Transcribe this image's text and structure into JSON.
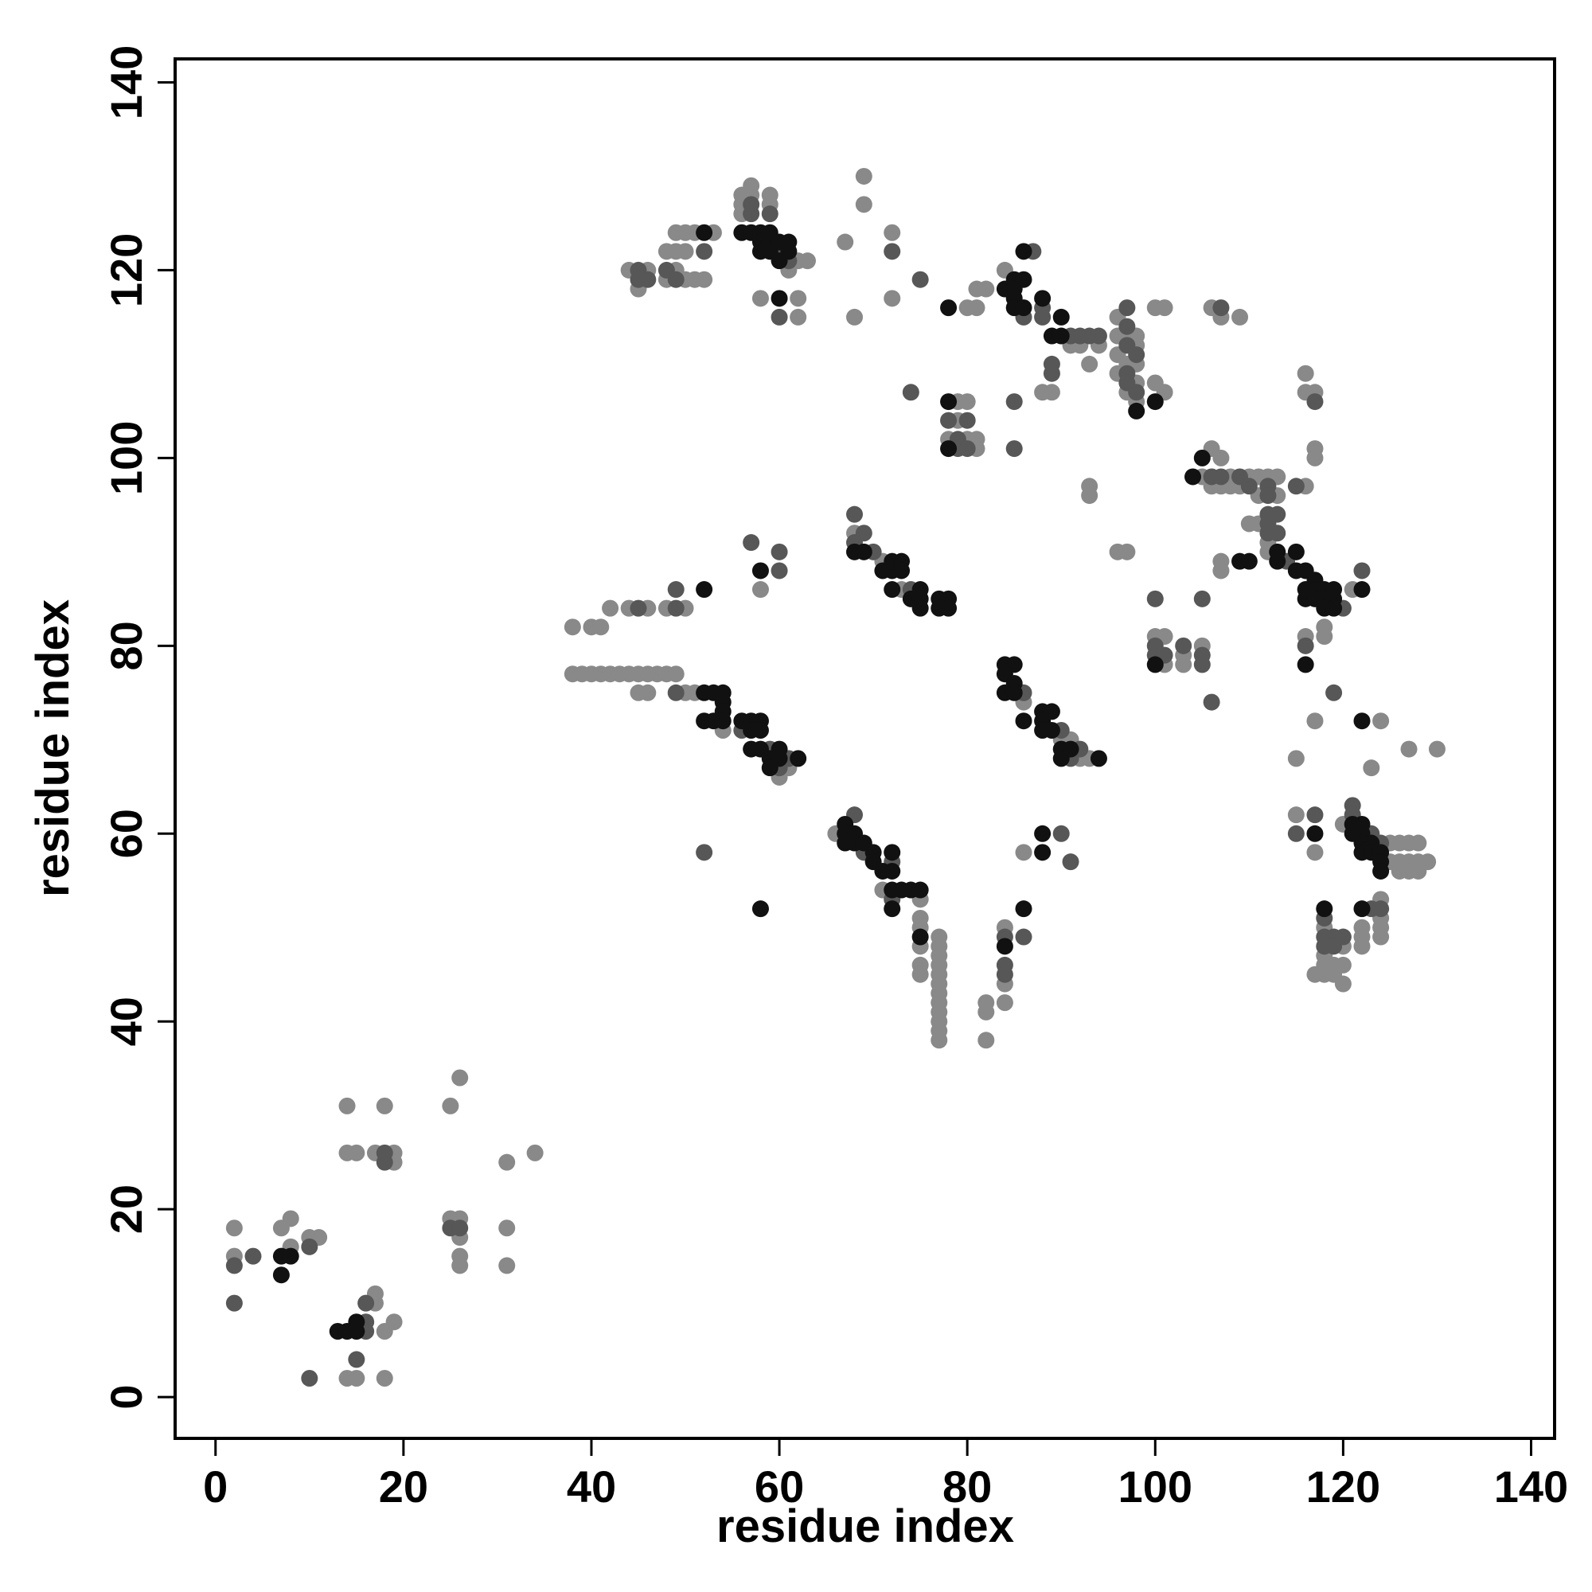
{
  "chart_data": {
    "type": "scatter",
    "x_label": "residue index",
    "y_label": "residue index",
    "xlim": [
      -4.3,
      142.5
    ],
    "ylim": [
      -4.4,
      142.5
    ],
    "xticks": [
      0,
      20,
      40,
      60,
      80,
      100,
      120,
      140
    ],
    "yticks": [
      0,
      20,
      40,
      60,
      80,
      100,
      120,
      140
    ],
    "series": [
      {
        "color": "#898989",
        "x": [
          2,
          2,
          7,
          8,
          8,
          10,
          11,
          17,
          17,
          18,
          19,
          14,
          15,
          18,
          14,
          18,
          14,
          15,
          17,
          19,
          19,
          25,
          26,
          25,
          26,
          26,
          26,
          26,
          31,
          34,
          31,
          31,
          38,
          39,
          40,
          41,
          42,
          43,
          44,
          45,
          46,
          47,
          48,
          49,
          38,
          40,
          41,
          42,
          44,
          46,
          48,
          50,
          45,
          46,
          50,
          51,
          54,
          60,
          61,
          58,
          66,
          71,
          75,
          75,
          75,
          75,
          75,
          75,
          77,
          77,
          77,
          77,
          77,
          77,
          77,
          77,
          77,
          77,
          77,
          77,
          82,
          82,
          82,
          84,
          84,
          84,
          86,
          68,
          71,
          73,
          86,
          90,
          91,
          92,
          93,
          44,
          45,
          46,
          48,
          49,
          50,
          51,
          52,
          48,
          49,
          50,
          49,
          50,
          51,
          53,
          56,
          56,
          56,
          57,
          57,
          59,
          59,
          61,
          62,
          62,
          63,
          58,
          62,
          67,
          68,
          69,
          69,
          72,
          72,
          80,
          81,
          81,
          82,
          84,
          88,
          89,
          91,
          92,
          93,
          94,
          96,
          96,
          96,
          96,
          97,
          97,
          97,
          98,
          98,
          98,
          98,
          98,
          100,
          101,
          100,
          101,
          93,
          93,
          78,
          79,
          79,
          80,
          80,
          81,
          81,
          96,
          97,
          100,
          101,
          101,
          103,
          103,
          105,
          105,
          106,
          106,
          107,
          107,
          108,
          108,
          109,
          110,
          111,
          111,
          112,
          113,
          113,
          116,
          116,
          116,
          117,
          117,
          117,
          106,
          107,
          109,
          107,
          107,
          110,
          111,
          112,
          112,
          121,
          116,
          118,
          118,
          117,
          115,
          124,
          123,
          127,
          130,
          115,
          117,
          120,
          125,
          125,
          126,
          126,
          126,
          127,
          127,
          127,
          128,
          128,
          128,
          129,
          118,
          118,
          118,
          118,
          119,
          119,
          117,
          120,
          120,
          120,
          122,
          122,
          122,
          124,
          124,
          124,
          124
        ],
        "values": [
          18,
          15,
          18,
          19,
          16,
          17,
          17,
          11,
          10,
          7,
          8,
          2,
          2,
          2,
          31,
          31,
          26,
          26,
          26,
          26,
          25,
          31,
          34,
          19,
          19,
          17,
          15,
          14,
          25,
          26,
          18,
          14,
          77,
          77,
          77,
          77,
          77,
          77,
          77,
          77,
          77,
          77,
          77,
          77,
          82,
          82,
          82,
          84,
          84,
          84,
          84,
          84,
          75,
          75,
          75,
          75,
          71,
          66,
          67,
          86,
          60,
          54,
          53,
          51,
          50,
          48,
          46,
          45,
          49,
          48,
          47,
          46,
          45,
          44,
          43,
          42,
          41,
          40,
          39,
          38,
          42,
          41,
          38,
          50,
          44,
          42,
          58,
          92,
          89,
          86,
          74,
          70,
          70,
          68,
          68,
          120,
          118,
          120,
          119,
          120,
          119,
          119,
          119,
          122,
          122,
          122,
          124,
          124,
          124,
          124,
          128,
          127,
          126,
          129,
          128,
          128,
          127,
          120,
          121,
          117,
          121,
          117,
          115,
          123,
          115,
          130,
          127,
          124,
          117,
          116,
          116,
          118,
          118,
          120,
          107,
          107,
          112,
          112,
          110,
          112,
          115,
          113,
          111,
          109,
          113,
          110,
          107,
          113,
          112,
          110,
          108,
          106,
          108,
          107,
          116,
          116,
          97,
          96,
          102,
          106,
          104,
          106,
          102,
          102,
          101,
          90,
          90,
          81,
          81,
          78,
          78,
          79,
          80,
          98,
          101,
          97,
          100,
          97,
          98,
          97,
          97,
          98,
          98,
          96,
          98,
          98,
          96,
          97,
          109,
          107,
          107,
          101,
          100,
          116,
          115,
          115,
          89,
          88,
          93,
          93,
          91,
          90,
          86,
          81,
          82,
          81,
          72,
          68,
          72,
          67,
          69,
          69,
          62,
          58,
          61,
          59,
          57,
          59,
          57,
          56,
          59,
          57,
          56,
          59,
          57,
          56,
          57,
          50,
          47,
          46,
          45,
          46,
          45,
          45,
          48,
          46,
          44,
          50,
          49,
          48,
          53,
          51,
          50,
          49
        ]
      },
      {
        "color": "#575757",
        "x": [
          2,
          2,
          4,
          10,
          10,
          16,
          16,
          16,
          15,
          18,
          18,
          25,
          26,
          45,
          49,
          49,
          49,
          56,
          59,
          60,
          61,
          57,
          60,
          60,
          52,
          68,
          69,
          72,
          72,
          84,
          84,
          84,
          86,
          90,
          91,
          68,
          68,
          69,
          70,
          74,
          86,
          90,
          91,
          92,
          45,
          45,
          46,
          48,
          49,
          52,
          57,
          57,
          59,
          60,
          61,
          60,
          72,
          75,
          74,
          86,
          87,
          88,
          88,
          89,
          89,
          91,
          92,
          93,
          94,
          97,
          97,
          97,
          97,
          97,
          98,
          98,
          85,
          85,
          78,
          79,
          79,
          80,
          80,
          100,
          100,
          100,
          101,
          103,
          105,
          105,
          105,
          106,
          106,
          107,
          109,
          110,
          112,
          112,
          115,
          117,
          107,
          112,
          112,
          112,
          113,
          113,
          114,
          120,
          122,
          116,
          119,
          115,
          117,
          121,
          121,
          123,
          124,
          118,
          118,
          118,
          119,
          119,
          120,
          124,
          123
        ],
        "values": [
          14,
          10,
          15,
          16,
          2,
          8,
          10,
          7,
          4,
          25,
          26,
          18,
          18,
          84,
          86,
          84,
          75,
          71,
          69,
          67,
          68,
          91,
          88,
          90,
          58,
          62,
          58,
          57,
          53,
          49,
          46,
          45,
          49,
          60,
          57,
          94,
          91,
          92,
          90,
          86,
          75,
          71,
          68,
          69,
          120,
          119,
          119,
          120,
          119,
          122,
          127,
          126,
          126,
          122,
          121,
          115,
          122,
          119,
          107,
          115,
          122,
          115,
          116,
          109,
          110,
          113,
          113,
          113,
          113,
          116,
          114,
          112,
          109,
          108,
          111,
          107,
          106,
          101,
          104,
          102,
          101,
          104,
          101,
          85,
          80,
          79,
          79,
          80,
          79,
          78,
          85,
          74,
          98,
          98,
          98,
          97,
          97,
          96,
          97,
          106,
          116,
          94,
          93,
          92,
          94,
          92,
          89,
          84,
          88,
          80,
          75,
          60,
          62,
          63,
          62,
          60,
          59,
          51,
          49,
          48,
          49,
          48,
          49,
          52,
          52
        ]
      },
      {
        "color": "#111111",
        "x": [
          7,
          7,
          8,
          13,
          14,
          15,
          15,
          52,
          52,
          53,
          54,
          52,
          53,
          54,
          54,
          54,
          56,
          57,
          58,
          57,
          58,
          57,
          58,
          60,
          59,
          59,
          60,
          62,
          58,
          58,
          67,
          67,
          67,
          68,
          68,
          69,
          70,
          70,
          71,
          72,
          72,
          72,
          72,
          73,
          74,
          75,
          75,
          84,
          86,
          88,
          88,
          68,
          69,
          71,
          72,
          72,
          73,
          73,
          72,
          74,
          75,
          75,
          75,
          77,
          77,
          78,
          78,
          84,
          85,
          84,
          85,
          84,
          85,
          86,
          88,
          89,
          88,
          88,
          89,
          90,
          90,
          91,
          94,
          52,
          56,
          57,
          58,
          58,
          58,
          59,
          59,
          59,
          60,
          60,
          61,
          61,
          60,
          78,
          84,
          85,
          85,
          86,
          86,
          85,
          85,
          86,
          88,
          89,
          90,
          90,
          98,
          100,
          78,
          78,
          100,
          104,
          105,
          109,
          110,
          113,
          113,
          115,
          115,
          116,
          117,
          117,
          116,
          116,
          117,
          118,
          118,
          118,
          119,
          119,
          119,
          122,
          116,
          122,
          117,
          121,
          121,
          122,
          122,
          122,
          122,
          123,
          123,
          124,
          124,
          124,
          118,
          122
        ],
        "values": [
          15,
          13,
          15,
          7,
          7,
          8,
          7,
          86,
          75,
          75,
          75,
          72,
          72,
          74,
          73,
          72,
          72,
          72,
          72,
          71,
          71,
          69,
          69,
          69,
          68,
          67,
          68,
          68,
          88,
          52,
          61,
          60,
          59,
          60,
          59,
          59,
          58,
          57,
          56,
          58,
          56,
          54,
          52,
          54,
          54,
          54,
          49,
          48,
          52,
          60,
          58,
          90,
          90,
          88,
          88,
          89,
          89,
          88,
          86,
          85,
          86,
          85,
          84,
          85,
          84,
          85,
          84,
          78,
          78,
          77,
          76,
          75,
          75,
          72,
          73,
          73,
          72,
          71,
          71,
          69,
          68,
          69,
          68,
          124,
          124,
          124,
          124,
          123,
          122,
          124,
          123,
          122,
          123,
          121,
          123,
          122,
          117,
          116,
          118,
          119,
          118,
          122,
          119,
          117,
          116,
          116,
          117,
          113,
          115,
          113,
          105,
          106,
          106,
          101,
          78,
          98,
          100,
          89,
          89,
          90,
          89,
          90,
          88,
          88,
          87,
          86,
          86,
          85,
          85,
          86,
          85,
          84,
          86,
          85,
          84,
          86,
          78,
          72,
          60,
          61,
          60,
          61,
          60,
          59,
          58,
          59,
          58,
          58,
          57,
          56,
          52,
          52
        ]
      }
    ]
  }
}
